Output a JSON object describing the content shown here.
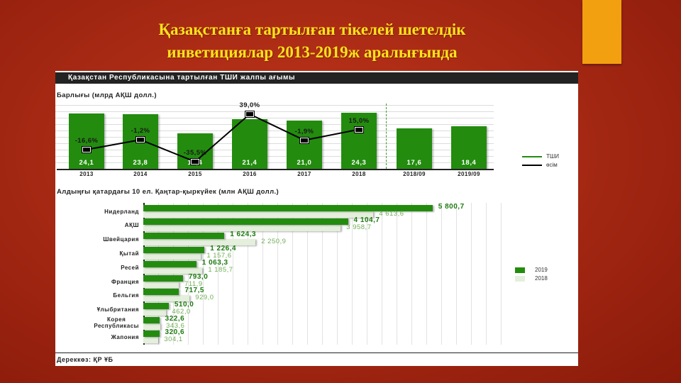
{
  "slide": {
    "title_line1": "Қазақстанға тартылған тікелей шетелдік",
    "title_line2": "инветициялар 2013-2019ж аралығында",
    "accent_color": "#f3a010",
    "title_color": "#ffe21a"
  },
  "panel": {
    "header": "Қазақстан Республикасына тартылған ТШИ жалпы ағымы",
    "source": "Дереккөз: ҚР ҰБ"
  },
  "chart_data": [
    {
      "type": "bar",
      "title": "Барлығы (млрд АҚШ долл.)",
      "categories": [
        "2013",
        "2014",
        "2015",
        "2016",
        "2017",
        "2018",
        "2018/09",
        "2019/09"
      ],
      "series": [
        {
          "name": "ТШИ",
          "type": "bar",
          "color": "#238c0f",
          "values": [
            24.1,
            23.8,
            15.4,
            21.4,
            21.0,
            24.3,
            17.6,
            18.4
          ]
        },
        {
          "name": "өсім",
          "type": "line",
          "color": "#000000",
          "values": [
            -16.6,
            -1.2,
            -35.5,
            39.0,
            -1.9,
            15.0,
            null,
            null
          ]
        }
      ],
      "value_labels": [
        "24,1",
        "23,8",
        "15,4",
        "21,4",
        "21,0",
        "24,3",
        "17,6",
        "18,4"
      ],
      "growth_labels": [
        "-16,6%",
        "-1,2%",
        "-35,5%",
        "39,0%",
        "-1,9%",
        "15,0%"
      ],
      "legend": [
        "ТШИ",
        "өсім"
      ],
      "legend_position": "right",
      "grid": true
    },
    {
      "type": "bar",
      "orientation": "horizontal",
      "title": "Алдыңғы қатардағы 10 ел. Қаңтар-қыркүйек (млн АҚШ долл.)",
      "categories": [
        "Нидерланд",
        "АҚШ",
        "Швейцария",
        "Қытай",
        "Ресей",
        "Франция",
        "Бельгия",
        "Ұлыбритания",
        "Корея Республикасы",
        "Жапония"
      ],
      "series": [
        {
          "name": "2019",
          "color": "#238c0f",
          "values": [
            5800.7,
            4104.7,
            1624.3,
            1226.4,
            1063.3,
            793.0,
            717.5,
            510.0,
            322.6,
            320.6
          ]
        },
        {
          "name": "2018",
          "color": "#e4efdc",
          "values": [
            4613.6,
            3958.7,
            2250.9,
            1157.6,
            1185.7,
            711.9,
            929.0,
            462.0,
            343.6,
            304.1
          ]
        }
      ],
      "labels_2019": [
        "5 800,7",
        "4 104,7",
        "1 624,3",
        "1 226,4",
        "1 063,3",
        "793,0",
        "717,5",
        "510,0",
        "322,6",
        "320,6"
      ],
      "labels_2018": [
        "4 613,6",
        "3 958,7",
        "2 250,9",
        "1 157,6",
        "1 185,7",
        "711,9",
        "929,0",
        "462,0",
        "343,6",
        "304,1"
      ],
      "legend": [
        "2019",
        "2018"
      ],
      "legend_position": "right",
      "grid": true
    }
  ]
}
